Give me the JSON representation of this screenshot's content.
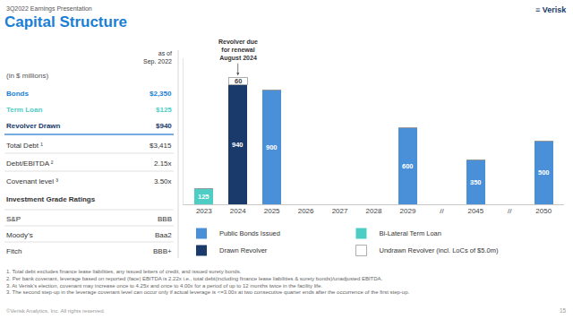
{
  "chart_data": {
    "type": "bar",
    "title": "Capital Structure",
    "subtitle": "3Q2022 Earnings Presentation",
    "categories": [
      "2023",
      "2024",
      "2025",
      "2026",
      "2027",
      "2028",
      "2029",
      "//",
      "2045",
      "//",
      "2050"
    ],
    "series": [
      {
        "name": "Public Bonds Issued",
        "color": "#4a90d9",
        "values": [
          0,
          0,
          900,
          0,
          0,
          0,
          600,
          0,
          350,
          0,
          500
        ]
      },
      {
        "name": "Bi-Lateral Term Loan",
        "color": "#4ecdc4",
        "values": [
          125,
          0,
          0,
          0,
          0,
          0,
          0,
          0,
          0,
          0,
          0
        ]
      },
      {
        "name": "Drawn Revolver",
        "color": "#1a3a6b",
        "values": [
          0,
          940,
          0,
          0,
          0,
          0,
          0,
          0,
          0,
          0,
          0
        ]
      },
      {
        "name": "Undrawn Revolver (incl. LoCs of $5.0m)",
        "color": "#ffffff",
        "values": [
          0,
          60,
          0,
          0,
          0,
          0,
          0,
          0,
          0,
          0,
          0
        ]
      }
    ],
    "stacked": true,
    "data_labels": true,
    "ylim": [
      0,
      1150
    ],
    "tick_labels": "x",
    "grid": false,
    "legend": "bottom",
    "annotations": [
      {
        "text": "Revolver due\nfor renewal\nAugust 2024",
        "category": "2024"
      }
    ],
    "table": {
      "as_of": "as of\nSep. 2022",
      "rows": [
        {
          "label": "(in $ millions)",
          "color": "#555555",
          "bold": false
        },
        {
          "label": "Bonds",
          "value": "$2,350",
          "color": "#1a7fd4",
          "bold": true
        },
        {
          "label": "Term Loan",
          "value": "$125",
          "color": "#4ecdc4",
          "bold": true
        },
        {
          "label": "Revolver Drawn",
          "value": "$940",
          "color": "#1a3a6b",
          "bold": true
        },
        {
          "label": "Total Debt ¹",
          "value": "$3,415",
          "color": "#333333",
          "bold": false
        },
        {
          "label": "Debt/EBITDA ²",
          "value": "2.15x",
          "color": "#333333",
          "bold": false
        },
        {
          "label": "Covenant level ³",
          "value": "3.50x",
          "color": "#333333",
          "bold": false
        }
      ],
      "ratings_header": "Investment Grade Ratings",
      "ratings": [
        [
          "S&P",
          "BBB"
        ],
        [
          "Moody’s",
          "Baa2"
        ],
        [
          "Fitch",
          "BBB+"
        ]
      ]
    },
    "footnotes": [
      "1. Total debt excludes finance lease liabilities, any issued letters of credit, and issued surety bonds.",
      "2. Per bank covenant, leverage based on reported (face) EBITDA is 2.22x i.e., total debt(including finance lease liabilities & surety bonds)/unadjusted EBITDA.",
      "3. At Verisk's election, covenant may increase once to 4.25x and once to 4.00x for a period of up to 12 months twice in the facility life.",
      "3. The second step-up in the leverage covenant level can occur only if actual leverage is <=3.00x at two consecutive quarter ends after the occurrence of the first step-up."
    ],
    "logo": "≡ Verisk",
    "copyright": "©Verisk Analytics, Inc. All rights reserved.",
    "page": "15"
  }
}
